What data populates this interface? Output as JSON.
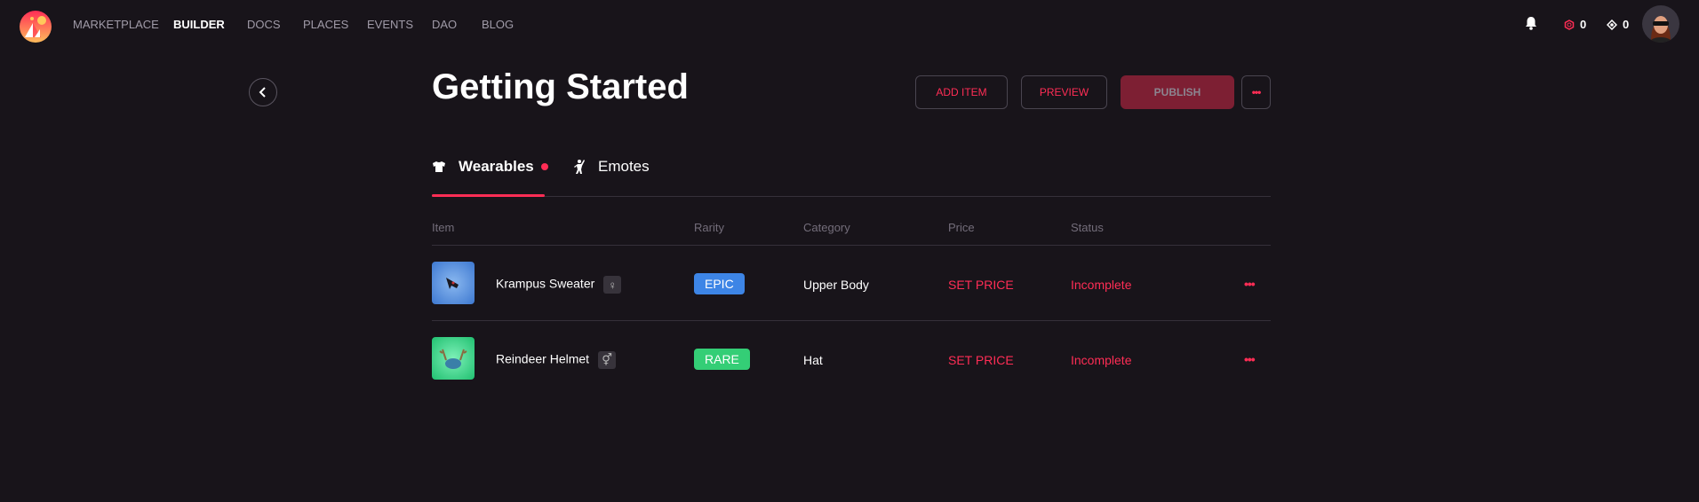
{
  "nav": {
    "items": [
      "MARKETPLACE",
      "BUILDER",
      "DOCS",
      "PLACES",
      "EVENTS",
      "DAO",
      "BLOG"
    ],
    "active": "BUILDER",
    "mana_l1": "0",
    "mana_l2": "0"
  },
  "page": {
    "title": "Getting Started",
    "add_item": "ADD ITEM",
    "preview": "PREVIEW",
    "publish": "PUBLISH"
  },
  "tabs": [
    {
      "label": "Wearables",
      "icon": "shirt-icon"
    },
    {
      "label": "Emotes",
      "icon": "dance-icon"
    }
  ],
  "table": {
    "headers": [
      "Item",
      "Rarity",
      "Category",
      "Price",
      "Status"
    ],
    "rows": [
      {
        "name": "Krampus Sweater",
        "gender": "♀",
        "rarity": "EPIC",
        "rarity_color": "#3d85e6",
        "category": "Upper Body",
        "price": "SET PRICE",
        "status": "Incomplete"
      },
      {
        "name": "Reindeer Helmet",
        "gender": "⚥",
        "rarity": "RARE",
        "rarity_color": "#34ce76",
        "category": "Hat",
        "price": "SET PRICE",
        "status": "Incomplete"
      }
    ]
  },
  "colors": {
    "accent": "#ff2d55",
    "background": "#18141a"
  }
}
